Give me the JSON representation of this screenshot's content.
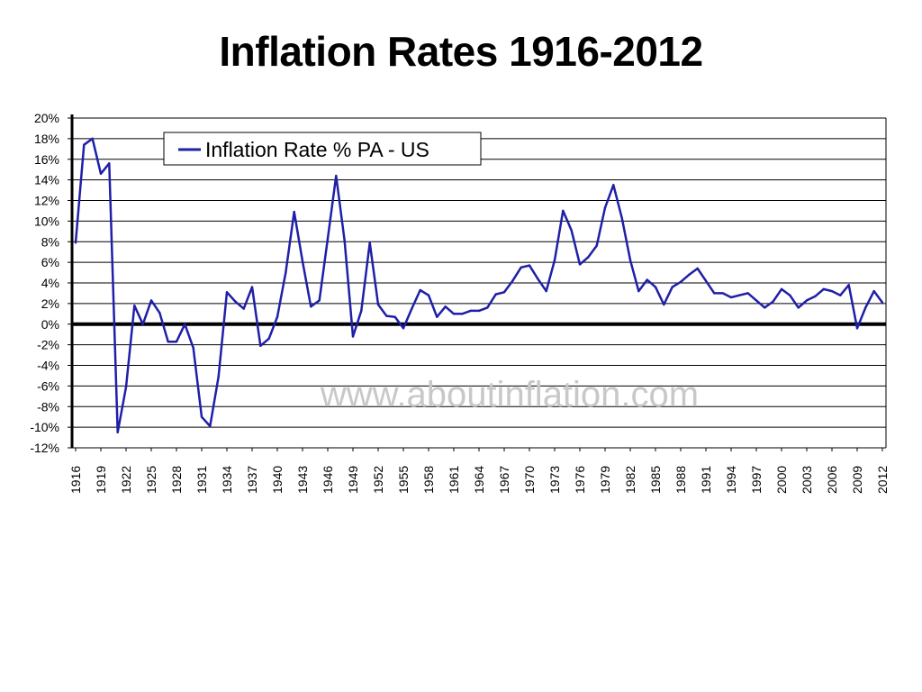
{
  "slide": {
    "title": "Inflation Rates 1916-2012"
  },
  "watermark": "www.aboutinflation.com",
  "colors": {
    "series": "#1f1fa8",
    "zero_line": "#000000",
    "grid": "#000000",
    "watermark": "#c8c8c8"
  },
  "chart_data": {
    "type": "line",
    "title": "",
    "xlabel": "",
    "ylabel": "",
    "ylim": [
      -12,
      20
    ],
    "y_ticks": [
      20,
      18,
      16,
      14,
      12,
      10,
      8,
      6,
      4,
      2,
      0,
      -2,
      -4,
      -6,
      -8,
      -10,
      -12
    ],
    "y_tick_labels": [
      "20%",
      "18%",
      "16%",
      "14%",
      "12%",
      "10%",
      "8%",
      "6%",
      "4%",
      "2%",
      "0%",
      "-2%",
      "-4%",
      "-6%",
      "-8%",
      "-10%",
      "-12%"
    ],
    "x_tick_labels": [
      "1916",
      "1919",
      "1922",
      "1925",
      "1928",
      "1931",
      "1934",
      "1937",
      "1940",
      "1943",
      "1946",
      "1949",
      "1952",
      "1955",
      "1958",
      "1961",
      "1964",
      "1967",
      "1970",
      "1973",
      "1976",
      "1979",
      "1982",
      "1985",
      "1988",
      "1991",
      "1994",
      "1997",
      "2000",
      "2003",
      "2006",
      "2009",
      "2012"
    ],
    "grid": true,
    "legend_position": "top-left",
    "series": [
      {
        "name": "Inflation Rate % PA - US",
        "x": [
          1916,
          1917,
          1918,
          1919,
          1920,
          1921,
          1922,
          1923,
          1924,
          1925,
          1926,
          1927,
          1928,
          1929,
          1930,
          1931,
          1932,
          1933,
          1934,
          1935,
          1936,
          1937,
          1938,
          1939,
          1940,
          1941,
          1942,
          1943,
          1944,
          1945,
          1946,
          1947,
          1948,
          1949,
          1950,
          1951,
          1952,
          1953,
          1954,
          1955,
          1956,
          1957,
          1958,
          1959,
          1960,
          1961,
          1962,
          1963,
          1964,
          1965,
          1966,
          1967,
          1968,
          1969,
          1970,
          1971,
          1972,
          1973,
          1974,
          1975,
          1976,
          1977,
          1978,
          1979,
          1980,
          1981,
          1982,
          1983,
          1984,
          1985,
          1986,
          1987,
          1988,
          1989,
          1990,
          1991,
          1992,
          1993,
          1994,
          1995,
          1996,
          1997,
          1998,
          1999,
          2000,
          2001,
          2002,
          2003,
          2004,
          2005,
          2006,
          2007,
          2008,
          2009,
          2010,
          2011,
          2012
        ],
        "values": [
          7.9,
          17.4,
          18.0,
          14.6,
          15.6,
          -10.5,
          -6.1,
          1.8,
          0.0,
          2.3,
          1.1,
          -1.7,
          -1.7,
          0.0,
          -2.3,
          -9.0,
          -9.9,
          -5.1,
          3.1,
          2.2,
          1.5,
          3.6,
          -2.1,
          -1.4,
          0.7,
          5.0,
          10.9,
          6.1,
          1.7,
          2.3,
          8.3,
          14.4,
          8.1,
          -1.2,
          1.3,
          7.9,
          1.9,
          0.8,
          0.7,
          -0.4,
          1.5,
          3.3,
          2.8,
          0.7,
          1.7,
          1.0,
          1.0,
          1.3,
          1.3,
          1.6,
          2.9,
          3.1,
          4.2,
          5.5,
          5.7,
          4.4,
          3.2,
          6.2,
          11.0,
          9.1,
          5.8,
          6.5,
          7.6,
          11.3,
          13.5,
          10.3,
          6.2,
          3.2,
          4.3,
          3.6,
          1.9,
          3.6,
          4.1,
          4.8,
          5.4,
          4.2,
          3.0,
          3.0,
          2.6,
          2.8,
          3.0,
          2.3,
          1.6,
          2.2,
          3.4,
          2.8,
          1.6,
          2.3,
          2.7,
          3.4,
          3.2,
          2.8,
          3.8,
          -0.4,
          1.6,
          3.2,
          2.1
        ]
      }
    ]
  }
}
